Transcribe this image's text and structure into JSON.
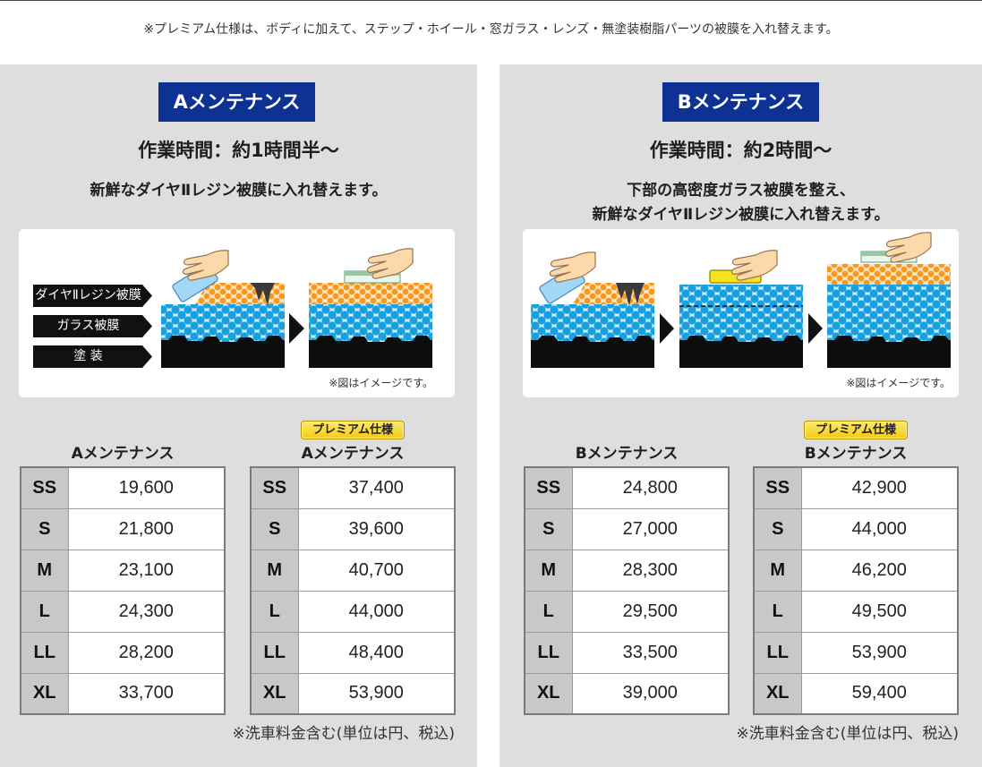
{
  "notice": "※プレミアム仕様は、ボディに加えて、ステップ・ホイール・窓ガラス・レンズ・無塗装樹脂パーツの被膜を入れ替えます。",
  "plans": [
    {
      "badge": "Aメンテナンス",
      "work_time": "作業時間：約1時間半〜",
      "description": [
        "新鮮なダイヤⅡレジン被膜に入れ替えます。"
      ],
      "illustration": {
        "layer_labels": [
          "ダイヤⅡレジン被膜",
          "ガラス被膜",
          "塗 装"
        ],
        "caption": "※図はイメージです。",
        "icons": [
          "hand-icon",
          "sponge-icon",
          "arrow-icon",
          "cloth-icon"
        ]
      },
      "tables": [
        {
          "title": "Aメンテナンス",
          "rows": [
            {
              "size": "SS",
              "price": "19,600"
            },
            {
              "size": "S",
              "price": "21,800"
            },
            {
              "size": "M",
              "price": "23,100"
            },
            {
              "size": "L",
              "price": "24,300"
            },
            {
              "size": "LL",
              "price": "28,200"
            },
            {
              "size": "XL",
              "price": "33,700"
            }
          ]
        },
        {
          "badge": "プレミアム仕様",
          "title": "Aメンテナンス",
          "rows": [
            {
              "size": "SS",
              "price": "37,400"
            },
            {
              "size": "S",
              "price": "39,600"
            },
            {
              "size": "M",
              "price": "40,700"
            },
            {
              "size": "L",
              "price": "44,000"
            },
            {
              "size": "LL",
              "price": "48,400"
            },
            {
              "size": "XL",
              "price": "53,900"
            }
          ]
        }
      ],
      "footnote": "※洗車料金含む(単位は円、税込)"
    },
    {
      "badge": "Bメンテナンス",
      "work_time": "作業時間：約2時間〜",
      "description": [
        "下部の高密度ガラス被膜を整え、",
        "新鮮なダイヤⅡレジン被膜に入れ替えます。"
      ],
      "illustration": {
        "caption": "※図はイメージです。",
        "icons": [
          "hand-icon",
          "sponge-icon",
          "arrow-icon",
          "cloth-icon"
        ]
      },
      "tables": [
        {
          "title": "Bメンテナンス",
          "rows": [
            {
              "size": "SS",
              "price": "24,800"
            },
            {
              "size": "S",
              "price": "27,000"
            },
            {
              "size": "M",
              "price": "28,300"
            },
            {
              "size": "L",
              "price": "29,500"
            },
            {
              "size": "LL",
              "price": "33,500"
            },
            {
              "size": "XL",
              "price": "39,000"
            }
          ]
        },
        {
          "badge": "プレミアム仕様",
          "title": "Bメンテナンス",
          "rows": [
            {
              "size": "SS",
              "price": "42,900"
            },
            {
              "size": "S",
              "price": "44,000"
            },
            {
              "size": "M",
              "price": "46,200"
            },
            {
              "size": "L",
              "price": "49,500"
            },
            {
              "size": "LL",
              "price": "53,900"
            },
            {
              "size": "XL",
              "price": "59,400"
            }
          ]
        }
      ],
      "footnote": "※洗車料金含む(単位は円、税込)"
    }
  ],
  "colors": {
    "plan_badge": "#0d3293",
    "premium_badge": "#f3c915",
    "panel_background": "#dedede",
    "size_column": "#c8c8c8",
    "glass_coating": "#179fe0",
    "resin_coating": "#f6991f",
    "paint": "#0d0d0d"
  }
}
